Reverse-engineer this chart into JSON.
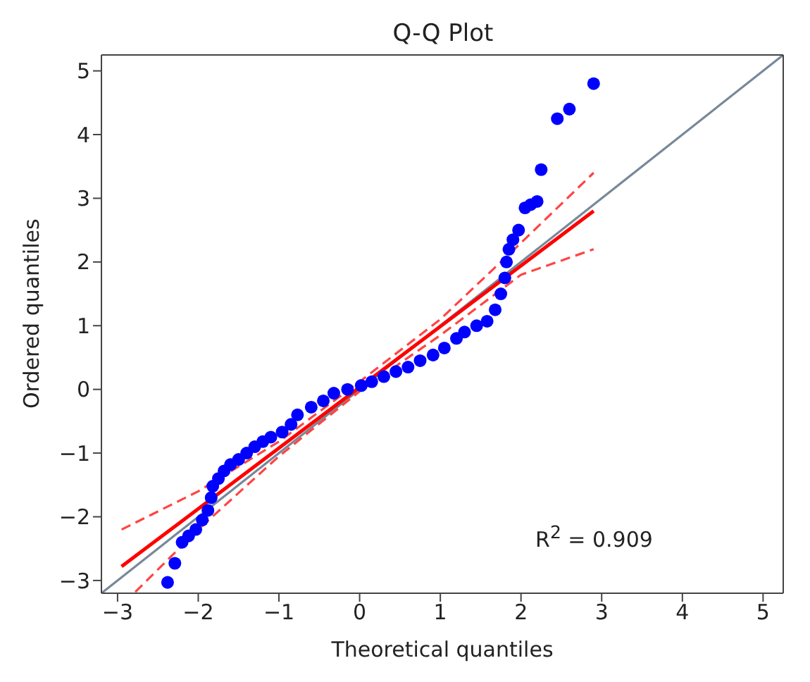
{
  "chart_data": {
    "type": "scatter",
    "title": "Q-Q Plot",
    "xlabel": "Theoretical quantiles",
    "ylabel": "Ordered quantiles",
    "xlim": [
      -3.2,
      5.25
    ],
    "ylim": [
      -3.2,
      5.25
    ],
    "xticks": [
      -3,
      -2,
      -1,
      0,
      1,
      2,
      3,
      4,
      5
    ],
    "yticks": [
      -3,
      -2,
      -1,
      0,
      1,
      2,
      3,
      4,
      5
    ],
    "grid": false,
    "legend": false,
    "marker": "circle",
    "annotations": [
      "R$^{2}$ = 0.909"
    ],
    "series": [
      {
        "type": "line",
        "color": "#778899",
        "line_style": "solid",
        "marker": "none",
        "x": [
          -3.2,
          5.25
        ],
        "values": [
          -3.2,
          5.25
        ]
      },
      {
        "color": "#0000ff",
        "x": [
          -2.38,
          -2.29,
          -2.2,
          -2.12,
          -2.03,
          -1.95,
          -1.88,
          -1.84,
          -1.82,
          -1.75,
          -1.68,
          -1.6,
          -1.5,
          -1.4,
          -1.3,
          -1.2,
          -1.1,
          -0.96,
          -0.85,
          -0.77,
          -0.6,
          -0.45,
          -0.32,
          -0.15,
          0.02,
          0.15,
          0.3,
          0.45,
          0.6,
          0.75,
          0.91,
          1.05,
          1.2,
          1.3,
          1.45,
          1.58,
          1.68,
          1.75,
          1.8,
          1.82,
          1.85,
          1.9,
          1.97,
          2.05,
          2.12,
          2.2,
          2.25,
          2.45,
          2.6,
          2.9
        ],
        "values": [
          -3.03,
          -2.73,
          -2.4,
          -2.3,
          -2.2,
          -2.05,
          -1.9,
          -1.7,
          -1.52,
          -1.4,
          -1.28,
          -1.18,
          -1.1,
          -1.0,
          -0.9,
          -0.82,
          -0.75,
          -0.67,
          -0.55,
          -0.4,
          -0.28,
          -0.18,
          -0.06,
          0.0,
          0.06,
          0.12,
          0.2,
          0.28,
          0.35,
          0.45,
          0.54,
          0.65,
          0.8,
          0.9,
          1.0,
          1.07,
          1.25,
          1.5,
          1.75,
          2.0,
          2.2,
          2.35,
          2.5,
          2.85,
          2.9,
          2.95,
          3.45,
          4.25,
          4.4,
          4.8
        ]
      },
      {
        "type": "line",
        "color": "#ff0000",
        "line_style": "solid",
        "marker": "none",
        "x": [
          -2.95,
          2.9
        ],
        "values": [
          -2.78,
          2.8
        ]
      },
      {
        "type": "line",
        "color": "#ff4444",
        "line_style": "dashed",
        "marker": "none",
        "x": [
          -2.95,
          -2,
          -1,
          0,
          1,
          2,
          2.9
        ],
        "values": [
          -2.2,
          -1.6,
          -0.82,
          0.12,
          1.1,
          2.3,
          3.4
        ]
      },
      {
        "type": "line",
        "color": "#ff4444",
        "line_style": "dashed",
        "marker": "none",
        "x": [
          -2.78,
          -2,
          -1,
          0,
          1,
          2,
          2.9
        ],
        "values": [
          -3.18,
          -2.2,
          -1.05,
          -0.03,
          0.85,
          1.8,
          2.2
        ]
      }
    ]
  }
}
